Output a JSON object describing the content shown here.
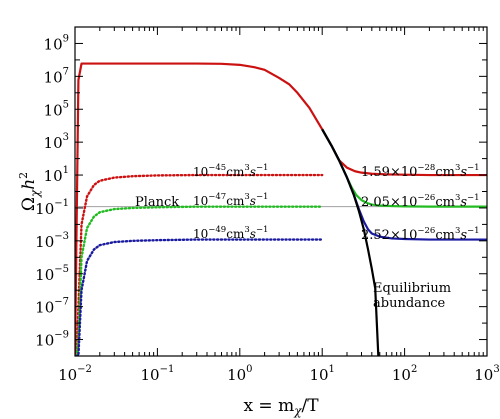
{
  "chart_data": {
    "type": "line",
    "xlabel": "x = m_χ/T",
    "ylabel": "Ω_χ h²",
    "x_scale": "log",
    "y_scale": "log",
    "xlim": [
      0.01,
      1000
    ],
    "ylim": [
      1e-10,
      10000000000.0
    ],
    "grid": false,
    "x_ticks": [
      {
        "base": "10",
        "exp": "-2",
        "value": 0.01
      },
      {
        "base": "10",
        "exp": "-1",
        "value": 0.1
      },
      {
        "base": "10",
        "exp": "0",
        "value": 1
      },
      {
        "base": "10",
        "exp": "1",
        "value": 10
      },
      {
        "base": "10",
        "exp": "2",
        "value": 100
      },
      {
        "base": "10",
        "exp": "3",
        "value": 1000
      }
    ],
    "y_ticks": [
      {
        "base": "10",
        "exp": "-9",
        "value": 1e-09
      },
      {
        "base": "10",
        "exp": "-7",
        "value": 1e-07
      },
      {
        "base": "10",
        "exp": "-5",
        "value": 1e-05
      },
      {
        "base": "10",
        "exp": "-3",
        "value": 0.001
      },
      {
        "base": "10",
        "exp": "-1",
        "value": 0.1
      },
      {
        "base": "10",
        "exp": "1",
        "value": 10
      },
      {
        "base": "10",
        "exp": "3",
        "value": 1000
      },
      {
        "base": "10",
        "exp": "5",
        "value": 100000.0
      },
      {
        "base": "10",
        "exp": "7",
        "value": 10000000.0
      },
      {
        "base": "10",
        "exp": "9",
        "value": 1000000000.0
      }
    ],
    "planck_line": {
      "label": "Planck",
      "y": 0.12,
      "color": "#a0a0a0"
    },
    "series": [
      {
        "key": "red",
        "color": "#cc1111",
        "style": "solid",
        "x": [
          0.01,
          0.011,
          0.012,
          0.05,
          0.1,
          0.3,
          0.6,
          1,
          1.5,
          2,
          3,
          4,
          5,
          7,
          10,
          13,
          16,
          20,
          25,
          30,
          40,
          60,
          100,
          200,
          500,
          1000
        ],
        "y": [
          1e-10,
          6000000.0,
          60000000.0,
          60000000.0,
          60000000.0,
          60000000.0,
          58000000.0,
          50000000.0,
          36000000.0,
          25000000.0,
          8000000.0,
          3200000.0,
          1000000.0,
          120000.0,
          6000.0,
          600,
          80,
          28,
          17,
          14,
          12,
          11,
          10.5,
          10,
          10,
          10
        ]
      },
      {
        "key": "green",
        "color": "#22bb22",
        "style": "solid",
        "x": [
          10,
          13,
          16,
          20,
          23,
          26,
          30,
          35,
          40,
          50,
          70,
          100,
          200,
          500,
          1000
        ],
        "y": [
          6000.0,
          600,
          80,
          7,
          1.6,
          0.6,
          0.3,
          0.2,
          0.16,
          0.14,
          0.13,
          0.125,
          0.12,
          0.12,
          0.12
        ]
      },
      {
        "key": "blue",
        "color": "#1a1aa0",
        "style": "solid",
        "x": [
          10,
          13,
          16,
          20,
          24,
          28,
          32,
          36,
          40,
          50,
          70,
          100,
          200,
          500,
          1000
        ],
        "y": [
          6000.0,
          600,
          80,
          7,
          0.7,
          0.08,
          0.015,
          0.005,
          0.0028,
          0.0018,
          0.0014,
          0.0013,
          0.0012,
          0.0012,
          0.0012
        ]
      },
      {
        "key": "equilibrium",
        "color": "#000000",
        "style": "solid",
        "x": [
          10,
          13,
          16,
          20,
          24,
          28,
          32,
          36,
          40,
          44,
          48
        ],
        "y": [
          6000.0,
          600,
          80,
          7,
          0.7,
          0.06,
          0.005,
          0.0003,
          2e-05,
          1.3e-06,
          1e-10
        ]
      },
      {
        "key": "red-dotted",
        "color": "#cc1111",
        "style": "dotted",
        "x": [
          0.0105,
          0.011,
          0.012,
          0.014,
          0.017,
          0.02,
          0.03,
          0.05,
          0.1,
          0.3,
          1,
          3,
          10
        ],
        "y": [
          1e-10,
          1e-07,
          0.01,
          0.5,
          2.5,
          4.5,
          7,
          8.5,
          9.5,
          10,
          10,
          10,
          10
        ]
      },
      {
        "key": "green-dotted",
        "color": "#22bb22",
        "style": "dotted",
        "x": [
          0.0105,
          0.011,
          0.012,
          0.014,
          0.017,
          0.02,
          0.03,
          0.05,
          0.1,
          0.3,
          1,
          3,
          10
        ],
        "y": [
          1e-10,
          1e-09,
          0.0001,
          0.006,
          0.03,
          0.055,
          0.085,
          0.1,
          0.11,
          0.12,
          0.12,
          0.12,
          0.12
        ]
      },
      {
        "key": "blue-dotted",
        "color": "#1a1aa0",
        "style": "dotted",
        "x": [
          0.0105,
          0.011,
          0.012,
          0.014,
          0.017,
          0.02,
          0.03,
          0.05,
          0.1,
          0.3,
          1,
          3,
          10
        ],
        "y": [
          1e-10,
          1e-10,
          1e-06,
          6e-05,
          0.0003,
          0.00055,
          0.00085,
          0.001,
          0.0011,
          0.0012,
          0.0012,
          0.0012,
          0.0012
        ]
      }
    ],
    "annotations": [
      {
        "key": "cs-red-dotted",
        "base": "10",
        "exp": "−45",
        "rest": "cm",
        "exp2": "3",
        "rest2": "s",
        "exp3": "−1"
      },
      {
        "key": "cs-green-dotted",
        "base": "10",
        "exp": "−47",
        "rest": "cm",
        "exp2": "3",
        "rest2": "s",
        "exp3": "−1"
      },
      {
        "key": "cs-blue-dotted",
        "base": "10",
        "exp": "−49",
        "rest": "cm",
        "exp2": "3",
        "rest2": "s",
        "exp3": "−1"
      },
      {
        "key": "cs-red",
        "base": "1.59×10",
        "exp": "−28",
        "rest": "cm",
        "exp2": "3",
        "rest2": "s",
        "exp3": "−1"
      },
      {
        "key": "cs-green",
        "base": "2.05×10",
        "exp": "−26",
        "rest": "cm",
        "exp2": "3",
        "rest2": "s",
        "exp3": "−1"
      },
      {
        "key": "cs-blue",
        "base": "2.52×10",
        "exp": "−26",
        "rest": "cm",
        "exp2": "3",
        "rest2": "s",
        "exp3": "−1"
      }
    ],
    "equilibrium_label": [
      "Equilibrium",
      "abundance"
    ]
  }
}
